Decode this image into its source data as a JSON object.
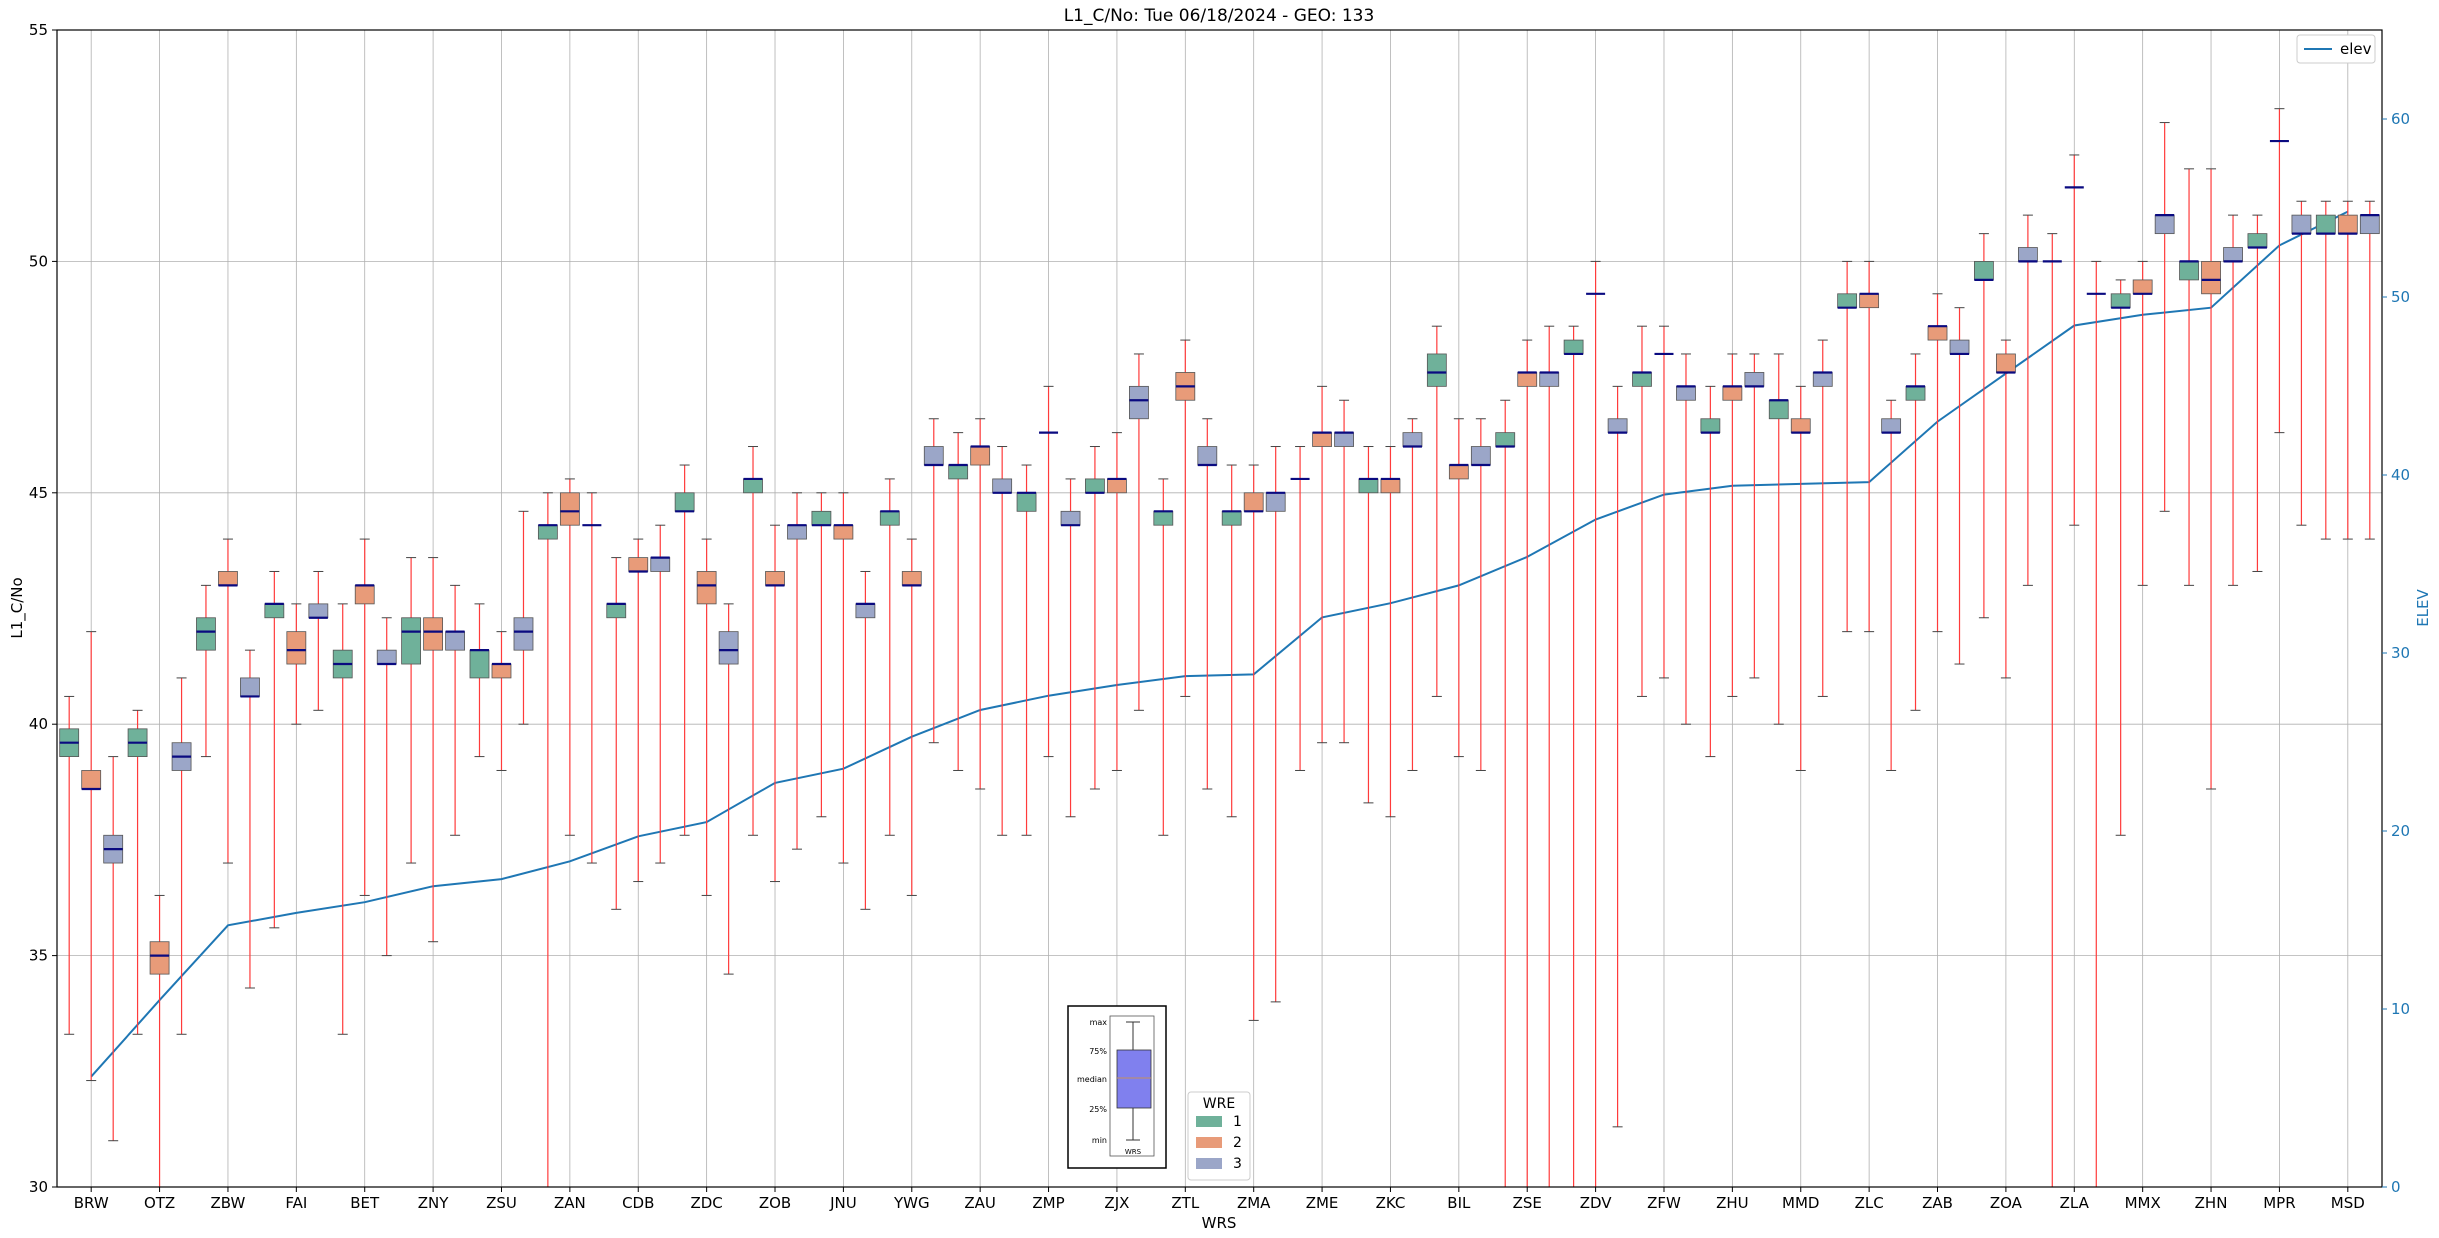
{
  "chart_data": {
    "type": "box",
    "title": "L1_C/No: Tue 06/18/2024 - GEO: 133",
    "xlabel": "WRS",
    "ylabel": "L1_C/No",
    "y2label": "ELEV",
    "ylim": [
      30,
      55
    ],
    "y2lim": [
      0,
      65
    ],
    "yticks": [
      30,
      35,
      40,
      45,
      50,
      55
    ],
    "y2ticks": [
      0,
      10,
      20,
      30,
      40,
      50,
      60
    ],
    "grid": true,
    "categories": [
      "BRW",
      "OTZ",
      "ZBW",
      "FAI",
      "BET",
      "ZNY",
      "ZSU",
      "ZAN",
      "CDB",
      "ZDC",
      "ZOB",
      "JNU",
      "YWG",
      "ZAU",
      "ZMP",
      "ZJX",
      "ZTL",
      "ZMA",
      "ZME",
      "ZKC",
      "BIL",
      "ZSE",
      "ZDV",
      "ZFW",
      "ZHU",
      "MMD",
      "ZLC",
      "ZAB",
      "ZOA",
      "ZLA",
      "MMX",
      "ZHN",
      "MPR",
      "MSD"
    ],
    "legend_groups": {
      "title": "WRE",
      "placement": "bottom-center",
      "entries": [
        {
          "label": "1",
          "color": "#6fb19a"
        },
        {
          "label": "2",
          "color": "#e89b79"
        },
        {
          "label": "3",
          "color": "#9ba6c8"
        }
      ]
    },
    "legend_line": {
      "label": "elev",
      "color": "#1f77b4",
      "placement": "top-right"
    },
    "whisker_color": "#ff3b3b",
    "median_color": "#0a0a80",
    "boxes": [
      [
        [
          33.3,
          39.3,
          39.6,
          39.9,
          40.6
        ],
        [
          32.3,
          38.6,
          38.6,
          39.0,
          42.0
        ],
        [
          31.0,
          37.0,
          37.3,
          37.6,
          39.3
        ]
      ],
      [
        [
          33.3,
          39.3,
          39.6,
          39.9,
          40.3
        ],
        [
          30.0,
          34.6,
          35.0,
          35.3,
          36.3
        ],
        [
          33.3,
          39.0,
          39.3,
          39.6,
          41.0
        ]
      ],
      [
        [
          39.3,
          41.6,
          42.0,
          42.3,
          43.0
        ],
        [
          37.0,
          43.0,
          43.0,
          43.3,
          44.0
        ],
        [
          34.3,
          40.6,
          40.6,
          41.0,
          41.6
        ]
      ],
      [
        [
          35.6,
          42.3,
          42.6,
          42.6,
          43.3
        ],
        [
          40.0,
          41.3,
          41.6,
          42.0,
          42.6
        ],
        [
          40.3,
          42.3,
          42.3,
          42.6,
          43.3
        ]
      ],
      [
        [
          33.3,
          41.0,
          41.3,
          41.6,
          42.6
        ],
        [
          36.3,
          42.6,
          43.0,
          43.0,
          44.0
        ],
        [
          35.0,
          41.3,
          41.3,
          41.6,
          42.3
        ]
      ],
      [
        [
          37.0,
          41.3,
          42.0,
          42.3,
          43.6
        ],
        [
          35.3,
          41.6,
          42.0,
          42.3,
          43.6
        ],
        [
          37.6,
          41.6,
          42.0,
          42.0,
          43.0
        ]
      ],
      [
        [
          39.3,
          41.0,
          41.6,
          41.6,
          42.6
        ],
        [
          39.0,
          41.0,
          41.3,
          41.3,
          42.0
        ],
        [
          40.0,
          41.6,
          42.0,
          42.3,
          44.6
        ]
      ],
      [
        [
          30.0,
          44.0,
          44.3,
          44.3,
          45.0
        ],
        [
          37.6,
          44.3,
          44.6,
          45.0,
          45.3
        ],
        [
          37.0,
          44.3,
          44.3,
          44.3,
          45.0
        ]
      ],
      [
        [
          36.0,
          42.3,
          42.6,
          42.6,
          43.6
        ],
        [
          36.6,
          43.3,
          43.3,
          43.6,
          44.0
        ],
        [
          37.0,
          43.3,
          43.6,
          43.6,
          44.3
        ]
      ],
      [
        [
          37.6,
          44.6,
          44.6,
          45.0,
          45.6
        ],
        [
          36.3,
          42.6,
          43.0,
          43.3,
          44.0
        ],
        [
          34.6,
          41.3,
          41.6,
          42.0,
          42.6
        ]
      ],
      [
        [
          37.6,
          45.0,
          45.3,
          45.3,
          46.0
        ],
        [
          36.6,
          43.0,
          43.0,
          43.3,
          44.3
        ],
        [
          37.3,
          44.0,
          44.3,
          44.3,
          45.0
        ]
      ],
      [
        [
          38.0,
          44.3,
          44.3,
          44.6,
          45.0
        ],
        [
          37.0,
          44.0,
          44.3,
          44.3,
          45.0
        ],
        [
          36.0,
          42.3,
          42.6,
          42.6,
          43.3
        ]
      ],
      [
        [
          37.6,
          44.3,
          44.6,
          44.6,
          45.3
        ],
        [
          36.3,
          43.0,
          43.0,
          43.3,
          44.0
        ],
        [
          39.6,
          45.6,
          45.6,
          46.0,
          46.6
        ]
      ],
      [
        [
          39.0,
          45.3,
          45.6,
          45.6,
          46.3
        ],
        [
          38.6,
          45.6,
          46.0,
          46.0,
          46.6
        ],
        [
          37.6,
          45.0,
          45.0,
          45.3,
          46.0
        ]
      ],
      [
        [
          37.6,
          44.6,
          45.0,
          45.0,
          45.6
        ],
        [
          39.3,
          46.3,
          46.3,
          46.3,
          47.3
        ],
        [
          38.0,
          44.3,
          44.3,
          44.6,
          45.3
        ]
      ],
      [
        [
          38.6,
          45.0,
          45.0,
          45.3,
          46.0
        ],
        [
          39.0,
          45.0,
          45.3,
          45.3,
          46.3
        ],
        [
          40.3,
          46.6,
          47.0,
          47.3,
          48.0
        ]
      ],
      [
        [
          37.6,
          44.3,
          44.6,
          44.6,
          45.3
        ],
        [
          40.6,
          47.0,
          47.3,
          47.6,
          48.3
        ],
        [
          38.6,
          45.6,
          45.6,
          46.0,
          46.6
        ]
      ],
      [
        [
          38.0,
          44.3,
          44.6,
          44.6,
          45.6
        ],
        [
          33.6,
          44.6,
          44.6,
          45.0,
          45.6
        ],
        [
          34.0,
          44.6,
          45.0,
          45.0,
          46.0
        ]
      ],
      [
        [
          39.0,
          45.3,
          45.3,
          45.3,
          46.0
        ],
        [
          39.6,
          46.0,
          46.3,
          46.3,
          47.3
        ],
        [
          39.6,
          46.0,
          46.3,
          46.3,
          47.0
        ]
      ],
      [
        [
          38.3,
          45.0,
          45.3,
          45.3,
          46.0
        ],
        [
          38.0,
          45.0,
          45.3,
          45.3,
          46.0
        ],
        [
          39.0,
          46.0,
          46.0,
          46.3,
          46.6
        ]
      ],
      [
        [
          40.6,
          47.3,
          47.6,
          48.0,
          48.6
        ],
        [
          39.3,
          45.3,
          45.6,
          45.6,
          46.6
        ],
        [
          39.0,
          45.6,
          45.6,
          46.0,
          46.6
        ]
      ],
      [
        [
          30.0,
          46.0,
          46.0,
          46.3,
          47.0
        ],
        [
          30.0,
          47.3,
          47.6,
          47.6,
          48.3
        ],
        [
          30.0,
          47.3,
          47.6,
          47.6,
          48.6
        ]
      ],
      [
        [
          30.0,
          48.0,
          48.0,
          48.3,
          48.6
        ],
        [
          30.0,
          49.3,
          49.3,
          49.3,
          50.0
        ],
        [
          31.3,
          46.3,
          46.3,
          46.6,
          47.3
        ]
      ],
      [
        [
          40.6,
          47.3,
          47.6,
          47.6,
          48.6
        ],
        [
          41.0,
          48.0,
          48.0,
          48.0,
          48.6
        ],
        [
          40.0,
          47.0,
          47.3,
          47.3,
          48.0
        ]
      ],
      [
        [
          39.3,
          46.3,
          46.3,
          46.6,
          47.3
        ],
        [
          40.6,
          47.0,
          47.3,
          47.3,
          48.0
        ],
        [
          41.0,
          47.3,
          47.3,
          47.6,
          48.0
        ]
      ],
      [
        [
          40.0,
          46.6,
          47.0,
          47.0,
          48.0
        ],
        [
          39.0,
          46.3,
          46.3,
          46.6,
          47.3
        ],
        [
          40.6,
          47.3,
          47.6,
          47.6,
          48.3
        ]
      ],
      [
        [
          42.0,
          49.0,
          49.0,
          49.3,
          50.0
        ],
        [
          42.0,
          49.0,
          49.3,
          49.3,
          50.0
        ],
        [
          39.0,
          46.3,
          46.3,
          46.6,
          47.0
        ]
      ],
      [
        [
          40.3,
          47.0,
          47.3,
          47.3,
          48.0
        ],
        [
          42.0,
          48.3,
          48.6,
          48.6,
          49.3
        ],
        [
          41.3,
          48.0,
          48.0,
          48.3,
          49.0
        ]
      ],
      [
        [
          42.3,
          49.6,
          49.6,
          50.0,
          50.6
        ],
        [
          41.0,
          47.6,
          47.6,
          48.0,
          48.3
        ],
        [
          43.0,
          50.0,
          50.0,
          50.3,
          51.0
        ]
      ],
      [
        [
          30.0,
          50.0,
          50.0,
          50.0,
          50.6
        ],
        [
          44.3,
          51.6,
          51.6,
          51.6,
          52.3
        ],
        [
          30.0,
          49.3,
          49.3,
          49.3,
          50.0
        ]
      ],
      [
        [
          37.6,
          49.0,
          49.0,
          49.3,
          49.6
        ],
        [
          43.0,
          49.3,
          49.3,
          49.6,
          50.0
        ],
        [
          44.6,
          50.6,
          51.0,
          51.0,
          53.0
        ]
      ],
      [
        [
          43.0,
          49.6,
          50.0,
          50.0,
          52.0
        ],
        [
          38.6,
          49.3,
          49.6,
          50.0,
          52.0
        ],
        [
          43.0,
          50.0,
          50.0,
          50.3,
          51.0
        ]
      ],
      [
        [
          43.3,
          50.3,
          50.3,
          50.6,
          51.0
        ],
        [
          46.3,
          52.6,
          52.6,
          52.6,
          53.3
        ],
        [
          44.3,
          50.6,
          50.6,
          51.0,
          51.3
        ]
      ],
      [
        [
          44.0,
          50.6,
          50.6,
          51.0,
          51.3
        ],
        [
          44.0,
          50.6,
          50.6,
          51.0,
          51.3
        ],
        [
          44.0,
          50.6,
          51.0,
          51.0,
          51.3
        ]
      ]
    ],
    "series": [
      {
        "name": "elev",
        "axis": "right",
        "values": [
          6.2,
          10.5,
          14.7,
          15.4,
          16.0,
          16.9,
          17.3,
          18.3,
          19.7,
          20.5,
          22.7,
          23.5,
          25.3,
          26.8,
          27.6,
          28.2,
          28.7,
          28.8,
          32.0,
          32.8,
          33.8,
          35.4,
          37.5,
          38.9,
          39.4,
          39.5,
          39.6,
          43.0,
          45.7,
          48.4,
          49.0,
          49.4,
          52.9,
          54.8
        ]
      }
    ],
    "inset_legend": {
      "labels": [
        "max",
        "75%",
        "median",
        "25%",
        "min"
      ],
      "xlabel": "WRS"
    }
  }
}
